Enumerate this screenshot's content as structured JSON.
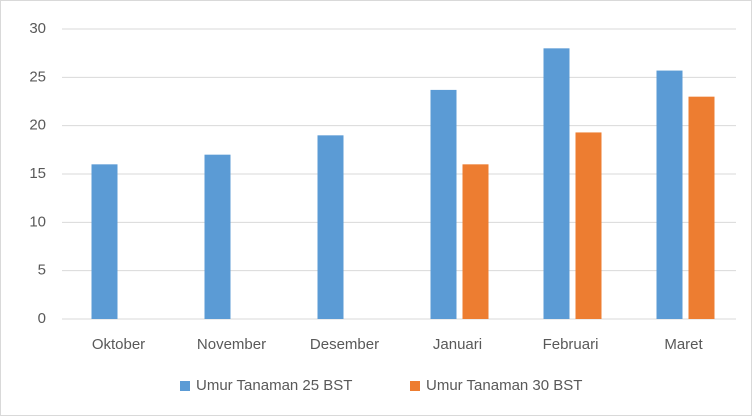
{
  "chart_data": {
    "type": "bar",
    "categories": [
      "Oktober",
      "November",
      "Desember",
      "Januari",
      "Februari",
      "Maret"
    ],
    "series": [
      {
        "name": "Umur Tanaman 25 BST",
        "color": "#5b9bd5",
        "values": [
          16,
          17,
          19,
          23.7,
          28,
          25.7
        ]
      },
      {
        "name": "Umur Tanaman 30 BST",
        "color": "#ed7d31",
        "values": [
          null,
          null,
          null,
          16,
          19.3,
          23
        ]
      }
    ],
    "ylim": [
      0,
      30
    ],
    "yticks": [
      0,
      5,
      10,
      15,
      20,
      25,
      30
    ],
    "grid": true,
    "legend": "bottom"
  }
}
